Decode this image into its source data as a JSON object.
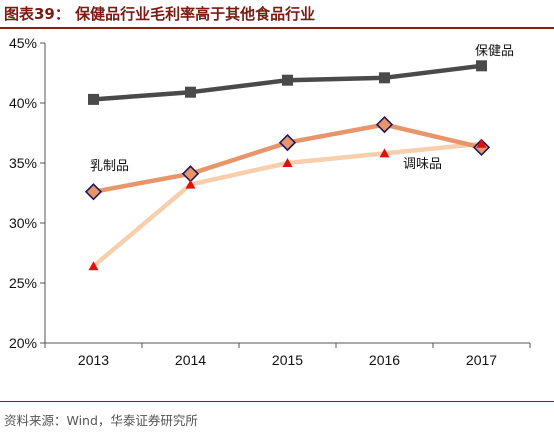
{
  "header": {
    "title": "图表39：  保健品行业毛利率高于其他食品行业"
  },
  "footer": {
    "source": "资料来源：Wind，华泰证券研究所"
  },
  "colors": {
    "accent": "#8b1c14",
    "axis": "#555555"
  },
  "chart_data": {
    "type": "line",
    "title": "",
    "xlabel": "",
    "ylabel": "",
    "categories": [
      "2013",
      "2014",
      "2015",
      "2016",
      "2017"
    ],
    "ylim": [
      20,
      45
    ],
    "yticks": [
      20,
      25,
      30,
      35,
      40,
      45
    ],
    "y_format": "percent",
    "grid": false,
    "series": [
      {
        "name": "保健品",
        "values": [
          40.3,
          40.9,
          41.9,
          42.1,
          43.1
        ],
        "color": "#4a4a4a",
        "marker": "square"
      },
      {
        "name": "乳制品",
        "values": [
          32.6,
          34.1,
          36.7,
          38.2,
          36.3
        ],
        "color": "#e8956b",
        "marker": "diamond"
      },
      {
        "name": "调味品",
        "values": [
          26.4,
          33.2,
          35.0,
          35.8,
          36.6
        ],
        "color": "#f7cfad",
        "marker": "triangle"
      }
    ]
  }
}
